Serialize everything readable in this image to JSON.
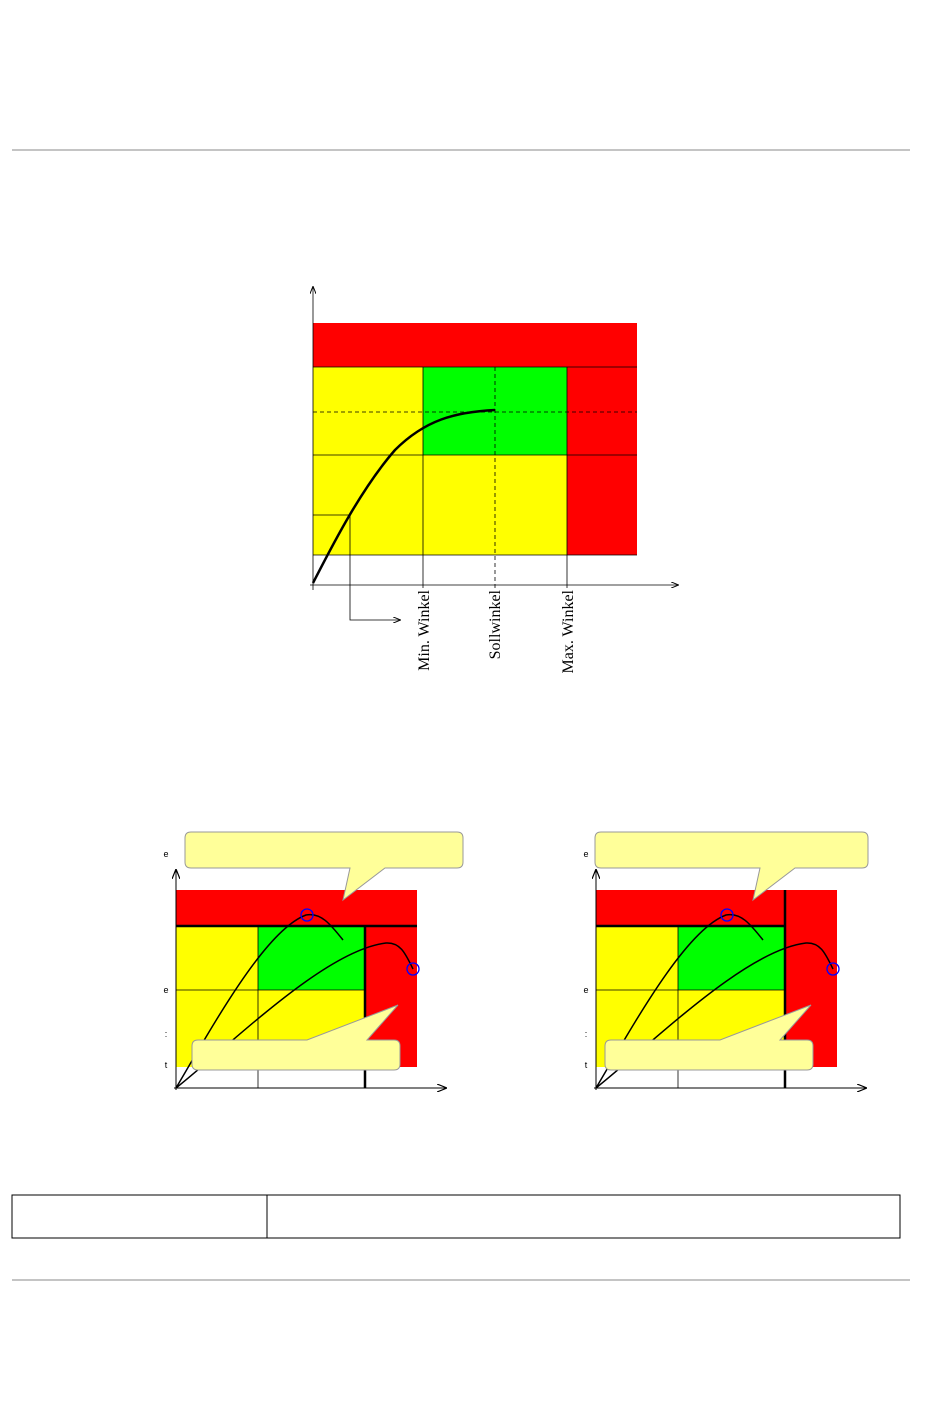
{
  "main_diagram": {
    "labels": [
      "Min. Winkel",
      "Sollwinkel",
      "Max. Winkel"
    ]
  },
  "small_diagrams": [
    {
      "axis_fragments": [
        "e",
        "e",
        ":",
        "t"
      ]
    },
    {
      "axis_fragments": [
        "e",
        "e",
        ":",
        "t"
      ]
    }
  ]
}
